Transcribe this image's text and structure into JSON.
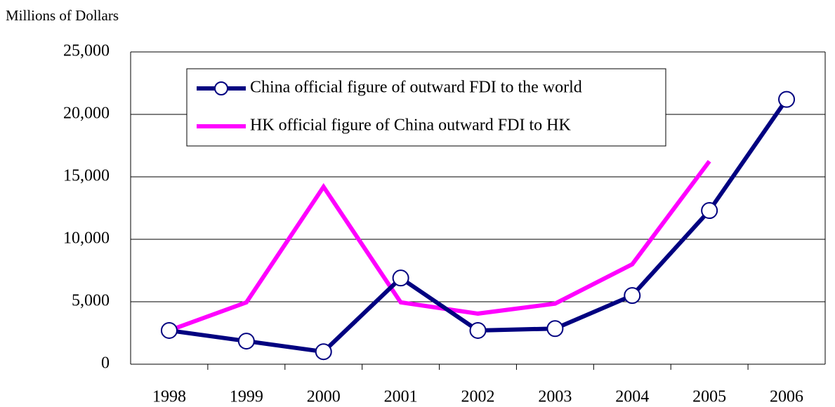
{
  "chart_data": {
    "type": "line",
    "y_axis_label": "Millions of Dollars",
    "categories": [
      "1998",
      "1999",
      "2000",
      "2001",
      "2002",
      "2003",
      "2004",
      "2005",
      "2006"
    ],
    "series": [
      {
        "name": "China official figure of outward FDI to the world",
        "color": "#000080",
        "marker": "circle",
        "values": [
          2700,
          1850,
          1000,
          6900,
          2700,
          2850,
          5500,
          12300,
          21200
        ]
      },
      {
        "name": "HK official figure of China outward FDI to HK",
        "color": "#ff00ff",
        "values": [
          2700,
          4950,
          14200,
          4950,
          4050,
          4850,
          8000,
          16250,
          null
        ]
      }
    ],
    "ylim": [
      0,
      25000
    ],
    "yticks": [
      0,
      {
        "value": 5000,
        "label": "5,000"
      },
      {
        "value": 10000,
        "label": "10,000"
      },
      {
        "value": 15000,
        "label": "15,000"
      },
      {
        "value": 20000,
        "label": "20,000"
      },
      {
        "value": 25000,
        "label": "25,000"
      }
    ],
    "grid": true
  }
}
